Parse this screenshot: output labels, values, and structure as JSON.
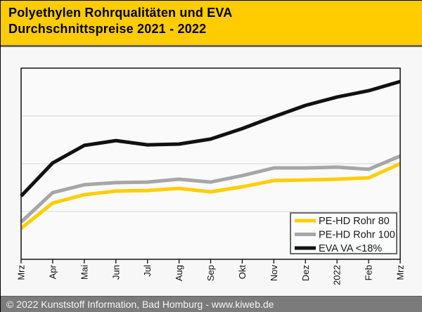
{
  "header": {
    "title_line1": "Polyethylen Rohrqualitäten und EVA",
    "title_line2": "Durchschnittspreise 2021 - 2022"
  },
  "footer": {
    "text": "© 2022 Kunststoff Information, Bad Homburg - www.kiweb.de"
  },
  "colors": {
    "header_background": "#FFCC00",
    "header_border": "#676767",
    "page_background": "#F7F7F7",
    "plot_background": "#FAFAFA",
    "plot_border": "#111111",
    "gridline": "#D6D6D6",
    "tick": "#111111",
    "axis_label_text": "#111111",
    "legend_background": "#FCFCFC",
    "legend_border": "#58595B",
    "legend_text": "#1A1A1A",
    "footer_background": "#7B7B7B",
    "footer_text": "#F5F5F5"
  },
  "chart_data": {
    "type": "line",
    "title": "Polyethylen Rohrqualitäten und EVA Durchschnittspreise 2021 - 2022",
    "xlabel": "",
    "ylabel": "",
    "categories": [
      "Mrz",
      "Apr",
      "Mai",
      "Jun",
      "Jul",
      "Aug",
      "Sep",
      "Okt",
      "Nov",
      "Dez",
      "2022",
      "Feb",
      "Mrz"
    ],
    "x_label_rotation_deg": -90,
    "series": [
      {
        "name": "PE-HD Rohr 80",
        "color": "#FFCE00",
        "values": [
          16.2,
          29.4,
          33.8,
          35.7,
          36.0,
          37.1,
          35.3,
          37.9,
          41.2,
          41.5,
          41.9,
          42.6,
          50.0
        ]
      },
      {
        "name": "PE-HD Rohr 100",
        "color": "#A6A6A6",
        "values": [
          19.5,
          34.9,
          39.0,
          40.1,
          40.4,
          41.9,
          40.4,
          43.8,
          47.8,
          47.8,
          48.2,
          47.1,
          54.0
        ]
      },
      {
        "name": "EVA VA <18%",
        "color": "#111111",
        "values": [
          33.1,
          50.4,
          59.6,
          62.1,
          59.9,
          60.3,
          62.9,
          68.4,
          74.6,
          80.5,
          84.9,
          88.2,
          93.0
        ]
      }
    ],
    "ylim": [
      0,
      100
    ],
    "y_axis_tick_labels_visible": false,
    "value_unit": "relative price level, % of plot height (no y-axis labels shown in chart)",
    "grid": "horizontal",
    "gridlines_at_percent": [
      25,
      50,
      75
    ],
    "legend_position": "inside-bottom-right"
  }
}
